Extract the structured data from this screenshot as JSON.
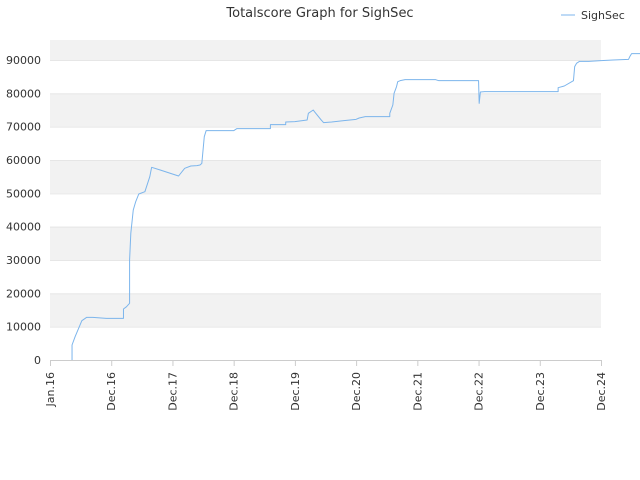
{
  "colors": {
    "line": "#7cb5ec",
    "band_shaded": "#f2f2f2",
    "band_plain": "#ffffff",
    "grid": "#e6e6e6",
    "axis": "#cccccc",
    "text": "#333333"
  },
  "chart_data": {
    "type": "line",
    "title": "Totalscore Graph for SighSec",
    "xlabel": "",
    "ylabel": "",
    "legend_position": "top-right",
    "grid": true,
    "alternating_bands": true,
    "x_ticks": [
      "Jan.16",
      "Dec.16",
      "Dec.17",
      "Dec.18",
      "Dec.19",
      "Dec.20",
      "Dec.21",
      "Dec.22",
      "Dec.23",
      "Dec.24"
    ],
    "y_ticks": [
      0,
      10000,
      20000,
      30000,
      40000,
      50000,
      60000,
      70000,
      80000,
      90000
    ],
    "ylim": [
      0,
      96000
    ],
    "series": [
      {
        "name": "SighSec",
        "color": "#7cb5ec",
        "points": [
          [
            0.36,
            0
          ],
          [
            0.36,
            4500
          ],
          [
            0.41,
            7000
          ],
          [
            0.52,
            11800
          ],
          [
            0.6,
            12800
          ],
          [
            0.7,
            12800
          ],
          [
            0.92,
            12500
          ],
          [
            1.2,
            12500
          ],
          [
            1.2,
            15300
          ],
          [
            1.25,
            16000
          ],
          [
            1.3,
            17000
          ],
          [
            1.3,
            30000
          ],
          [
            1.32,
            38000
          ],
          [
            1.36,
            45000
          ],
          [
            1.4,
            47500
          ],
          [
            1.45,
            49800
          ],
          [
            1.55,
            50500
          ],
          [
            1.63,
            55000
          ],
          [
            1.66,
            57800
          ],
          [
            1.8,
            57000
          ],
          [
            2.0,
            55800
          ],
          [
            2.1,
            55200
          ],
          [
            2.2,
            57500
          ],
          [
            2.3,
            58200
          ],
          [
            2.4,
            58300
          ],
          [
            2.45,
            58500
          ],
          [
            2.48,
            59000
          ],
          [
            2.52,
            67000
          ],
          [
            2.55,
            68800
          ],
          [
            2.65,
            68800
          ],
          [
            3.0,
            68800
          ],
          [
            3.05,
            69400
          ],
          [
            3.6,
            69400
          ],
          [
            3.6,
            70600
          ],
          [
            3.85,
            70600
          ],
          [
            3.85,
            71400
          ],
          [
            4.0,
            71500
          ],
          [
            4.2,
            72000
          ],
          [
            4.22,
            74000
          ],
          [
            4.3,
            75000
          ],
          [
            4.32,
            74500
          ],
          [
            4.43,
            72000
          ],
          [
            4.47,
            71200
          ],
          [
            4.6,
            71400
          ],
          [
            4.8,
            71800
          ],
          [
            5.0,
            72200
          ],
          [
            5.05,
            72600
          ],
          [
            5.15,
            73000
          ],
          [
            5.55,
            73000
          ],
          [
            5.55,
            74000
          ],
          [
            5.6,
            76500
          ],
          [
            5.62,
            80000
          ],
          [
            5.66,
            82000
          ],
          [
            5.68,
            83500
          ],
          [
            5.72,
            83800
          ],
          [
            5.8,
            84100
          ],
          [
            6.3,
            84100
          ],
          [
            6.35,
            83800
          ],
          [
            7.0,
            83800
          ],
          [
            7.01,
            77000
          ],
          [
            7.03,
            80400
          ],
          [
            7.1,
            80500
          ],
          [
            8.0,
            80500
          ],
          [
            8.3,
            80500
          ],
          [
            8.3,
            81700
          ],
          [
            8.4,
            82200
          ],
          [
            8.55,
            83800
          ],
          [
            8.57,
            88000
          ],
          [
            8.6,
            89000
          ],
          [
            8.65,
            89600
          ],
          [
            8.8,
            89600
          ],
          [
            9.0,
            89800
          ],
          [
            9.2,
            90000
          ],
          [
            9.35,
            90100
          ],
          [
            9.45,
            90200
          ],
          [
            9.47,
            91000
          ],
          [
            9.5,
            91900
          ],
          [
            9.7,
            91900
          ],
          [
            9.75,
            91700
          ],
          [
            10.0,
            91700
          ],
          [
            10.25,
            91800
          ],
          [
            10.3,
            92000
          ],
          [
            10.48,
            92000
          ]
        ]
      }
    ]
  }
}
